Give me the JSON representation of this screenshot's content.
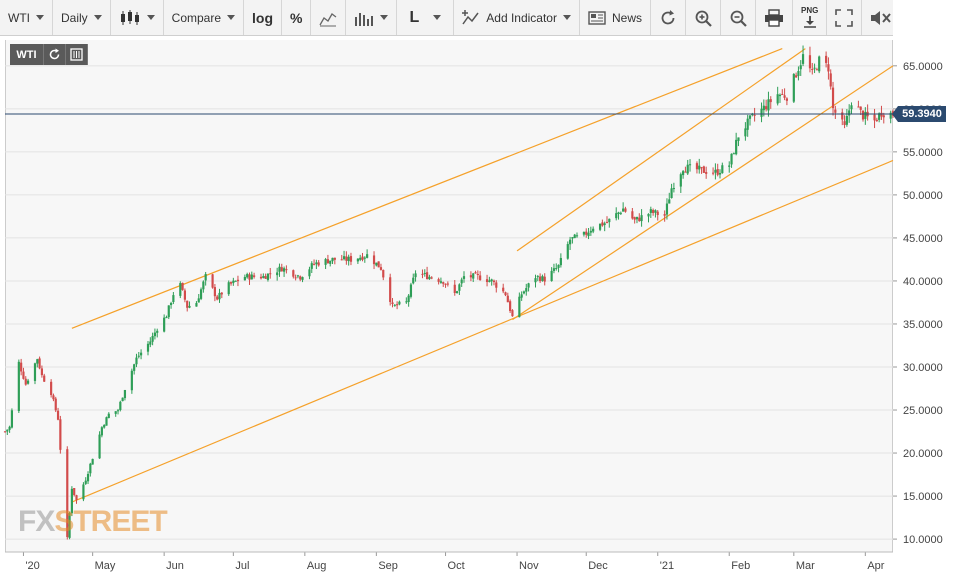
{
  "toolbar": {
    "symbol": "WTI",
    "interval": "Daily",
    "compare": "Compare",
    "log": "log",
    "percent": "%",
    "line_tool": "L",
    "add_indicator": "Add Indicator",
    "news": "News",
    "png_label": "PNG"
  },
  "chart_controls": {
    "symbol_badge": "WTI"
  },
  "watermark": {
    "fx": "FX",
    "street": "STREET"
  },
  "last_price_label": "59.3940",
  "colors": {
    "up": "#2e9e57",
    "down": "#d24b4b",
    "trendline": "#f5a12a",
    "last_price_line": "#2b4a6f",
    "grid": "#e3e3e3"
  },
  "chart_data": {
    "type": "candlestick",
    "title": "",
    "xlabel": "",
    "ylabel": "",
    "x_range": [
      "2020-03-24",
      "2021-04-13"
    ],
    "ylim": [
      8.5,
      68
    ],
    "grid": true,
    "y_ticks": [
      10,
      15,
      20,
      25,
      30,
      35,
      40,
      45,
      50,
      55,
      60,
      65
    ],
    "y_tick_labels": [
      "10.0000",
      "15.0000",
      "20.0000",
      "25.0000",
      "30.0000",
      "35.0000",
      "40.0000",
      "45.0000",
      "50.0000",
      "55.0000",
      "60.0000",
      "65.0000"
    ],
    "x_ticks": [
      {
        "date": "2020-04-01",
        "label": "'20"
      },
      {
        "date": "2020-05-01",
        "label": "May"
      },
      {
        "date": "2020-06-01",
        "label": "Jun"
      },
      {
        "date": "2020-07-01",
        "label": "Jul"
      },
      {
        "date": "2020-08-01",
        "label": "Aug"
      },
      {
        "date": "2020-09-01",
        "label": "Sep"
      },
      {
        "date": "2020-10-01",
        "label": "Oct"
      },
      {
        "date": "2020-11-01",
        "label": "Nov"
      },
      {
        "date": "2020-12-01",
        "label": "Dec"
      },
      {
        "date": "2021-01-01",
        "label": "'21"
      },
      {
        "date": "2021-02-01",
        "label": "Feb"
      },
      {
        "date": "2021-03-01",
        "label": "Mar"
      },
      {
        "date": "2021-04-01",
        "label": "Apr"
      }
    ],
    "last_price": 59.394,
    "close_path": [
      [
        "2020-03-24",
        22.5
      ],
      [
        "2020-03-26",
        23.0
      ],
      [
        "2020-03-30",
        30.5
      ],
      [
        "2020-04-02",
        28.0
      ],
      [
        "2020-04-07",
        31.0
      ],
      [
        "2020-04-09",
        29.0
      ],
      [
        "2020-04-13",
        27.0
      ],
      [
        "2020-04-16",
        24.0
      ],
      [
        "2020-04-20",
        10.0
      ],
      [
        "2020-04-22",
        16.0
      ],
      [
        "2020-04-24",
        14.5
      ],
      [
        "2020-04-28",
        17.0
      ],
      [
        "2020-05-01",
        19.5
      ],
      [
        "2020-05-05",
        23.0
      ],
      [
        "2020-05-08",
        24.5
      ],
      [
        "2020-05-12",
        25.0
      ],
      [
        "2020-05-15",
        27.5
      ],
      [
        "2020-05-20",
        31.0
      ],
      [
        "2020-05-26",
        33.0
      ],
      [
        "2020-05-29",
        34.5
      ],
      [
        "2020-06-02",
        36.0
      ],
      [
        "2020-06-05",
        38.5
      ],
      [
        "2020-06-08",
        39.5
      ],
      [
        "2020-06-11",
        37.0
      ],
      [
        "2020-06-15",
        37.5
      ],
      [
        "2020-06-19",
        40.5
      ],
      [
        "2020-06-24",
        38.0
      ],
      [
        "2020-06-29",
        39.5
      ],
      [
        "2020-07-06",
        40.5
      ],
      [
        "2020-07-14",
        40.5
      ],
      [
        "2020-07-22",
        41.5
      ],
      [
        "2020-07-30",
        40.5
      ],
      [
        "2020-08-05",
        42.0
      ],
      [
        "2020-08-13",
        42.5
      ],
      [
        "2020-08-21",
        42.5
      ],
      [
        "2020-08-28",
        43.0
      ],
      [
        "2020-09-03",
        41.5
      ],
      [
        "2020-09-08",
        37.0
      ],
      [
        "2020-09-14",
        37.5
      ],
      [
        "2020-09-18",
        41.0
      ],
      [
        "2020-09-24",
        40.5
      ],
      [
        "2020-09-30",
        40.0
      ],
      [
        "2020-10-05",
        38.5
      ],
      [
        "2020-10-09",
        40.5
      ],
      [
        "2020-10-15",
        40.5
      ],
      [
        "2020-10-21",
        40.0
      ],
      [
        "2020-10-27",
        38.5
      ],
      [
        "2020-10-30",
        35.8
      ],
      [
        "2020-11-03",
        38.5
      ],
      [
        "2020-11-09",
        40.5
      ],
      [
        "2020-11-13",
        40.2
      ],
      [
        "2020-11-19",
        41.7
      ],
      [
        "2020-11-24",
        44.8
      ],
      [
        "2020-11-30",
        45.3
      ],
      [
        "2020-12-04",
        46.3
      ],
      [
        "2020-12-10",
        46.8
      ],
      [
        "2020-12-17",
        48.4
      ],
      [
        "2020-12-22",
        47.0
      ],
      [
        "2020-12-29",
        48.0
      ],
      [
        "2021-01-04",
        47.6
      ],
      [
        "2021-01-07",
        50.8
      ],
      [
        "2021-01-12",
        53.2
      ],
      [
        "2021-01-19",
        52.9
      ],
      [
        "2021-01-26",
        52.6
      ],
      [
        "2021-02-01",
        53.5
      ],
      [
        "2021-02-05",
        56.9
      ],
      [
        "2021-02-10",
        58.7
      ],
      [
        "2021-02-16",
        60.1
      ],
      [
        "2021-02-22",
        61.7
      ],
      [
        "2021-02-26",
        61.5
      ],
      [
        "2021-03-05",
        66.1
      ],
      [
        "2021-03-09",
        64.0
      ],
      [
        "2021-03-12",
        65.6
      ],
      [
        "2021-03-16",
        64.8
      ],
      [
        "2021-03-18",
        60.0
      ],
      [
        "2021-03-23",
        57.8
      ],
      [
        "2021-03-26",
        60.9
      ],
      [
        "2021-03-31",
        59.2
      ],
      [
        "2021-04-05",
        58.6
      ],
      [
        "2021-04-08",
        59.6
      ],
      [
        "2021-04-13",
        59.4
      ]
    ],
    "trendlines": [
      {
        "name": "upper-channel-1",
        "from": [
          "2020-04-22",
          34.5
        ],
        "to": [
          "2021-02-24",
          67.0
        ]
      },
      {
        "name": "lower-channel-1",
        "from": [
          "2020-04-22",
          14.3
        ],
        "to": [
          "2021-04-13",
          54.0
        ]
      },
      {
        "name": "upper-channel-2",
        "from": [
          "2020-11-01",
          43.5
        ],
        "to": [
          "2021-03-06",
          67.0
        ]
      },
      {
        "name": "lower-channel-2",
        "from": [
          "2020-10-30",
          35.5
        ],
        "to": [
          "2021-04-13",
          65.0
        ]
      }
    ]
  }
}
